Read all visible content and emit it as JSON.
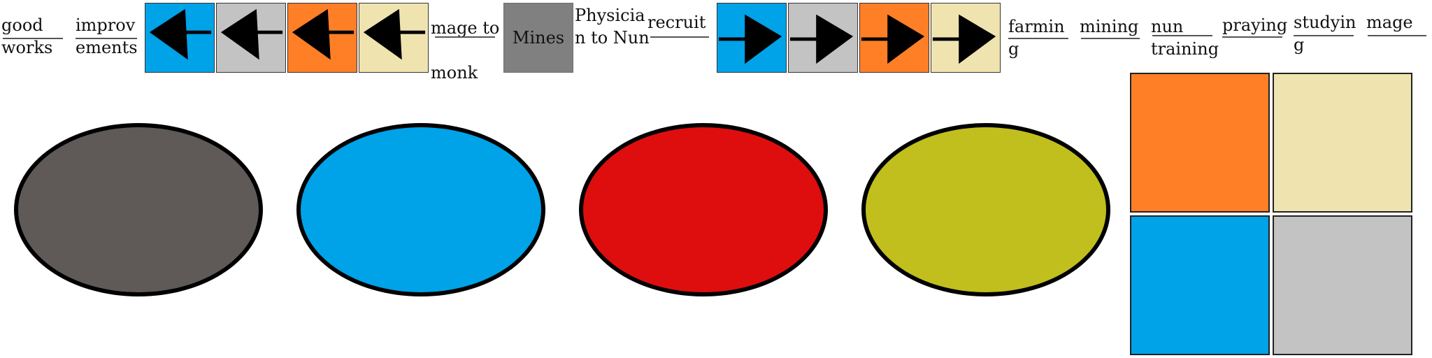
{
  "colors": {
    "blue": "#00a2e8",
    "gray": "#c3c3c3",
    "orange": "#ff7f27",
    "cream": "#efe4b0",
    "mines": "#808080",
    "dark_gray": "#5f5a58",
    "red": "#df0e0e",
    "olive": "#c0bf1e"
  },
  "top_bar": {
    "good_works": [
      "good",
      "works"
    ],
    "improvements": [
      "improv",
      "ements"
    ],
    "mage_to_monk": [
      "mage to",
      "monk"
    ],
    "mines_label": "Mines",
    "physician_to_nun": [
      "Physicia",
      "n to Nun"
    ],
    "recruit": "recruit",
    "farming": [
      "farmin",
      "g"
    ],
    "mining": "mining",
    "nun_training": [
      "nun",
      "training"
    ],
    "praying": "praying",
    "studying": [
      "studyin",
      "g"
    ],
    "mage": "mage"
  },
  "left_arrows": [
    {
      "name": "blue-left-arrow-button",
      "color": "blue",
      "icon": "arrow-left-icon"
    },
    {
      "name": "gray-left-arrow-button",
      "color": "gray",
      "icon": "arrow-left-icon"
    },
    {
      "name": "orange-left-arrow-button",
      "color": "orange",
      "icon": "arrow-left-icon"
    },
    {
      "name": "cream-left-arrow-button",
      "color": "cream",
      "icon": "arrow-left-icon"
    }
  ],
  "right_arrows": [
    {
      "name": "blue-right-arrow-button",
      "color": "blue",
      "icon": "arrow-right-icon"
    },
    {
      "name": "gray-right-arrow-button",
      "color": "gray",
      "icon": "arrow-right-icon"
    },
    {
      "name": "orange-right-arrow-button",
      "color": "orange",
      "icon": "arrow-right-icon"
    },
    {
      "name": "cream-right-arrow-button",
      "color": "cream",
      "icon": "arrow-right-icon"
    }
  ],
  "ovals": [
    {
      "name": "dark-gray-oval",
      "color": "dark_gray"
    },
    {
      "name": "blue-oval",
      "color": "blue"
    },
    {
      "name": "red-oval",
      "color": "red"
    },
    {
      "name": "olive-oval",
      "color": "olive"
    }
  ],
  "squares": [
    {
      "name": "orange-square",
      "color": "orange"
    },
    {
      "name": "cream-square",
      "color": "cream"
    },
    {
      "name": "blue-square",
      "color": "blue"
    },
    {
      "name": "gray-square",
      "color": "gray"
    }
  ]
}
